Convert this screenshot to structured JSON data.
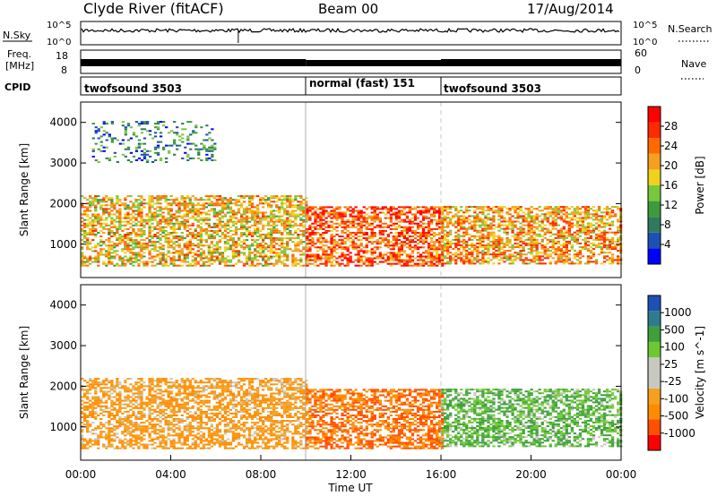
{
  "header": {
    "station": "Clyde River (fitACF)",
    "beam": "Beam 00",
    "date": "17/Aug/2014"
  },
  "top_panels": {
    "nsky_label": "N.Sky",
    "nsky_ticks": [
      "10^5",
      "10^0"
    ],
    "nsearch_ticks": [
      "10^5",
      "10^0"
    ],
    "nsearch_label": "N.Search",
    "freq_label": [
      "Freq.",
      "[MHz]"
    ],
    "freq_ticks": [
      "18",
      "8"
    ],
    "nave_ticks": [
      "60",
      "0"
    ],
    "nave_label": "Nave",
    "cpid_label": "CPID"
  },
  "cpid_segments": [
    {
      "start_hr": 0,
      "end_hr": 10,
      "label": "twofsound 3503"
    },
    {
      "start_hr": 10,
      "end_hr": 16,
      "label": "normal (fast) 151"
    },
    {
      "start_hr": 16,
      "end_hr": 24,
      "label": "twofsound 3503"
    }
  ],
  "colorbars": {
    "power": {
      "label": "Power [dB]",
      "ticks": [
        "28",
        "24",
        "20",
        "16",
        "12",
        "8",
        "4"
      ],
      "colors": [
        "#0000ff",
        "#1e50b4",
        "#2f7a5e",
        "#3e9a3c",
        "#78c83c",
        "#f0d21e",
        "#f5a01e",
        "#ff6a00",
        "#ff2a00",
        "#ff0000"
      ]
    },
    "velocity": {
      "label": "Velocity [m s^-1]",
      "ticks": [
        "1000",
        "500",
        "100",
        "25",
        "-25",
        "-100",
        "-500",
        "-1000"
      ],
      "colors": [
        "#ff0000",
        "#ff4f00",
        "#ff8c00",
        "#f5a01e",
        "#c8c8c0",
        "#c8c8c0",
        "#6ec832",
        "#3ea03c",
        "#2f7a8e",
        "#1e50b4"
      ]
    }
  },
  "chart_data": [
    {
      "type": "heatmap",
      "parameter": "Power",
      "ylabel": "Slant Range [km]",
      "ylim": [
        180,
        4500
      ],
      "yticks": [
        1000,
        2000,
        3000,
        4000
      ],
      "xlim": [
        0,
        24
      ],
      "clim": [
        0,
        30
      ],
      "clabel": "Power [dB]",
      "approx_bands": [
        {
          "start_hr": 0,
          "end_hr": 10,
          "range_min_km": 450,
          "range_max_km": 2200,
          "typical_power_db": 18
        },
        {
          "start_hr": 10,
          "end_hr": 16,
          "range_min_km": 450,
          "range_max_km": 1900,
          "typical_power_db": 24
        },
        {
          "start_hr": 16,
          "end_hr": 24,
          "range_min_km": 500,
          "range_max_km": 1900,
          "typical_power_db": 20
        },
        {
          "start_hr": 0.5,
          "end_hr": 6,
          "range_min_km": 3000,
          "range_max_km": 4000,
          "typical_power_db": 8
        }
      ]
    },
    {
      "type": "heatmap",
      "parameter": "Velocity",
      "ylabel": "Slant Range [km]",
      "xlabel": "Time UT",
      "ylim": [
        180,
        4500
      ],
      "yticks": [
        1000,
        2000,
        3000,
        4000
      ],
      "xlim": [
        0,
        24
      ],
      "xticks": [
        "00:00",
        "04:00",
        "08:00",
        "12:00",
        "16:00",
        "20:00",
        "00:00"
      ],
      "clim": [
        -1000,
        1000
      ],
      "clabel": "Velocity [m s^-1]",
      "approx_bands": [
        {
          "start_hr": 0,
          "end_hr": 10,
          "range_min_km": 450,
          "range_max_km": 2200,
          "typical_velocity": -100
        },
        {
          "start_hr": 10,
          "end_hr": 16,
          "range_min_km": 450,
          "range_max_km": 1900,
          "typical_velocity": -500
        },
        {
          "start_hr": 16,
          "end_hr": 24,
          "range_min_km": 500,
          "range_max_km": 1900,
          "typical_velocity": 100
        }
      ]
    }
  ]
}
